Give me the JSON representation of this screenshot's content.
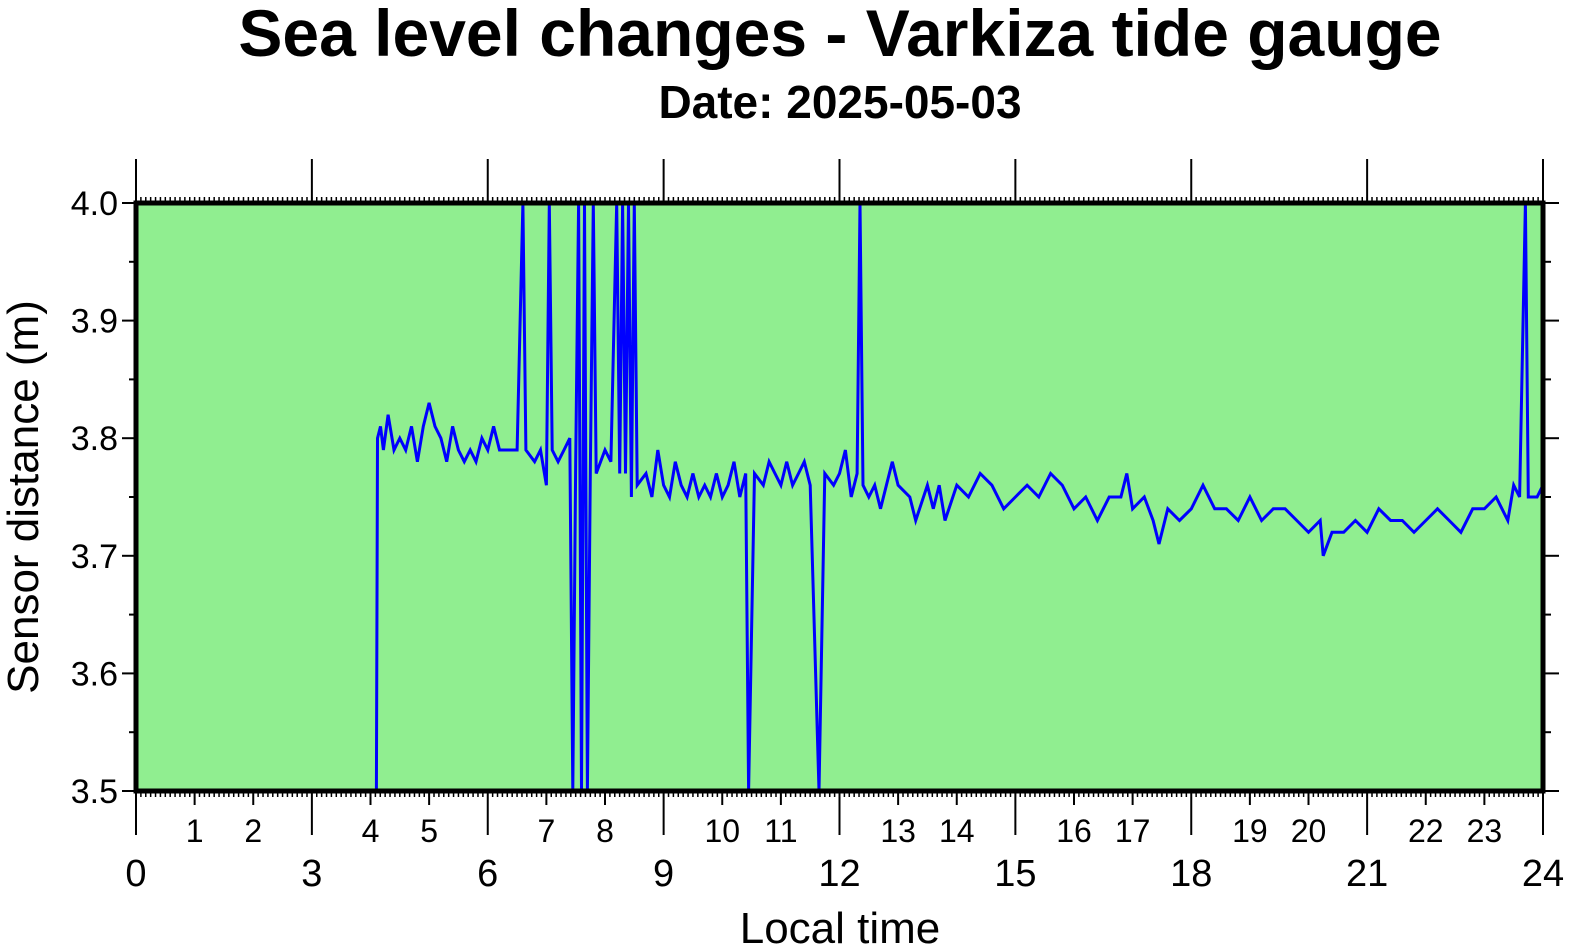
{
  "chart_data": {
    "type": "line",
    "title": "Sea level changes - Varkiza tide gauge",
    "subtitle": "Date: 2025-05-03",
    "x_label": "Local time",
    "y_label": "Sensor distance (m)",
    "xlim": [
      0,
      24
    ],
    "ylim": [
      3.5,
      4.0
    ],
    "xticks": [
      0,
      3,
      6,
      9,
      12,
      15,
      18,
      21,
      24
    ],
    "xticks_minor": [
      1,
      2,
      4,
      5,
      7,
      8,
      10,
      11,
      13,
      14,
      16,
      17,
      19,
      20,
      22,
      23
    ],
    "yticks": [
      3.5,
      3.6,
      3.7,
      3.8,
      3.9,
      {
        "value": 4.0,
        "label": "4.0"
      }
    ],
    "background": "#90ee90",
    "series": [
      {
        "color": "#0000ff",
        "x": [
          4.1,
          4.12,
          4.17,
          4.22,
          4.3,
          4.4,
          4.5,
          4.6,
          4.7,
          4.8,
          4.9,
          5.0,
          5.1,
          5.2,
          5.3,
          5.4,
          5.5,
          5.6,
          5.7,
          5.8,
          5.9,
          6.0,
          6.1,
          6.2,
          6.3,
          6.5,
          6.6,
          6.65,
          6.8,
          6.9,
          7.0,
          7.05,
          7.1,
          7.2,
          7.3,
          7.4,
          7.45,
          7.5,
          7.55,
          7.6,
          7.65,
          7.7,
          7.75,
          7.8,
          7.85,
          8.0,
          8.1,
          8.2,
          8.25,
          8.3,
          8.35,
          8.4,
          8.45,
          8.5,
          8.55,
          8.7,
          8.8,
          8.9,
          9.0,
          9.1,
          9.2,
          9.3,
          9.4,
          9.5,
          9.6,
          9.7,
          9.8,
          9.9,
          10.0,
          10.1,
          10.2,
          10.3,
          10.4,
          10.45,
          10.55,
          10.7,
          10.8,
          10.9,
          11.0,
          11.1,
          11.2,
          11.3,
          11.4,
          11.5,
          11.65,
          11.75,
          11.9,
          12.0,
          12.1,
          12.2,
          12.3,
          12.35,
          12.4,
          12.5,
          12.6,
          12.7,
          12.8,
          12.9,
          13.0,
          13.2,
          13.3,
          13.5,
          13.6,
          13.7,
          13.8,
          14.0,
          14.2,
          14.4,
          14.6,
          14.8,
          15.0,
          15.2,
          15.4,
          15.6,
          15.8,
          16.0,
          16.2,
          16.4,
          16.6,
          16.8,
          16.9,
          17.0,
          17.2,
          17.35,
          17.45,
          17.6,
          17.8,
          18.0,
          18.2,
          18.4,
          18.6,
          18.8,
          19.0,
          19.2,
          19.4,
          19.6,
          19.8,
          20.0,
          20.2,
          20.25,
          20.4,
          20.6,
          20.8,
          21.0,
          21.2,
          21.4,
          21.6,
          21.8,
          22.0,
          22.2,
          22.4,
          22.6,
          22.8,
          23.0,
          23.2,
          23.4,
          23.5,
          23.6,
          23.7,
          23.75,
          23.9,
          24.0
        ],
        "values": [
          3.5,
          3.8,
          3.81,
          3.79,
          3.82,
          3.79,
          3.8,
          3.79,
          3.81,
          3.78,
          3.81,
          3.83,
          3.81,
          3.8,
          3.78,
          3.81,
          3.79,
          3.78,
          3.79,
          3.78,
          3.8,
          3.79,
          3.81,
          3.79,
          3.79,
          3.79,
          4.0,
          3.79,
          3.78,
          3.79,
          3.76,
          4.0,
          3.79,
          3.78,
          3.79,
          3.8,
          3.5,
          3.78,
          4.0,
          3.5,
          4.0,
          3.5,
          3.77,
          4.0,
          3.77,
          3.79,
          3.78,
          4.0,
          3.77,
          4.0,
          3.77,
          4.0,
          3.75,
          4.0,
          3.76,
          3.77,
          3.75,
          3.79,
          3.76,
          3.75,
          3.78,
          3.76,
          3.75,
          3.77,
          3.75,
          3.76,
          3.75,
          3.77,
          3.75,
          3.76,
          3.78,
          3.75,
          3.77,
          3.5,
          3.77,
          3.76,
          3.78,
          3.77,
          3.76,
          3.78,
          3.76,
          3.77,
          3.78,
          3.76,
          3.5,
          3.77,
          3.76,
          3.77,
          3.79,
          3.75,
          3.77,
          4.0,
          3.76,
          3.75,
          3.76,
          3.74,
          3.76,
          3.78,
          3.76,
          3.75,
          3.73,
          3.76,
          3.74,
          3.76,
          3.73,
          3.76,
          3.75,
          3.77,
          3.76,
          3.74,
          3.75,
          3.76,
          3.75,
          3.77,
          3.76,
          3.74,
          3.75,
          3.73,
          3.75,
          3.75,
          3.77,
          3.74,
          3.75,
          3.73,
          3.71,
          3.74,
          3.73,
          3.74,
          3.76,
          3.74,
          3.74,
          3.73,
          3.75,
          3.73,
          3.74,
          3.74,
          3.73,
          3.72,
          3.73,
          3.7,
          3.72,
          3.72,
          3.73,
          3.72,
          3.74,
          3.73,
          3.73,
          3.72,
          3.73,
          3.74,
          3.73,
          3.72,
          3.74,
          3.74,
          3.75,
          3.73,
          3.76,
          3.75,
          4.0,
          3.75,
          3.75,
          3.76
        ]
      }
    ]
  }
}
